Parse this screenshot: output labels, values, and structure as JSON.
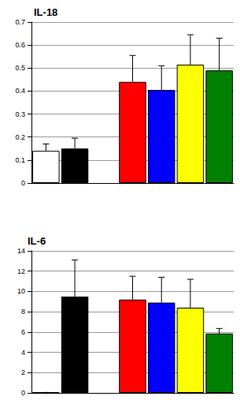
{
  "chart_data": [
    {
      "type": "bar",
      "title": "IL-18",
      "categories": [
        null,
        null,
        null,
        null,
        null,
        null,
        null
      ],
      "values": [
        0.14,
        0.15,
        null,
        0.44,
        0.405,
        0.515,
        0.49
      ],
      "errors": [
        0.03,
        0.045,
        null,
        0.115,
        0.105,
        0.13,
        0.14
      ],
      "colors": [
        "#ffffff",
        "#000000",
        null,
        "#ff0000",
        "#0000ff",
        "#ffff00",
        "#008000"
      ],
      "ylim": [
        0,
        0.7
      ],
      "yticks": [
        0,
        0.1,
        0.2,
        0.3,
        0.4,
        0.5,
        0.6,
        0.7
      ],
      "grid": true,
      "tick_labels": "y"
    },
    {
      "type": "bar",
      "title": "IL-6",
      "categories": [
        null,
        null,
        null,
        null,
        null,
        null,
        null
      ],
      "values": [
        0.05,
        9.5,
        null,
        9.2,
        8.9,
        8.4,
        5.85
      ],
      "errors": [
        0,
        3.6,
        null,
        2.3,
        2.5,
        2.8,
        0.5
      ],
      "colors": [
        "#ffffff",
        "#000000",
        null,
        "#ff0000",
        "#0000ff",
        "#ffff00",
        "#008000"
      ],
      "ylim": [
        0,
        14
      ],
      "yticks": [
        0,
        2,
        4,
        6,
        8,
        10,
        12,
        14
      ],
      "grid": true,
      "tick_labels": "y"
    }
  ]
}
